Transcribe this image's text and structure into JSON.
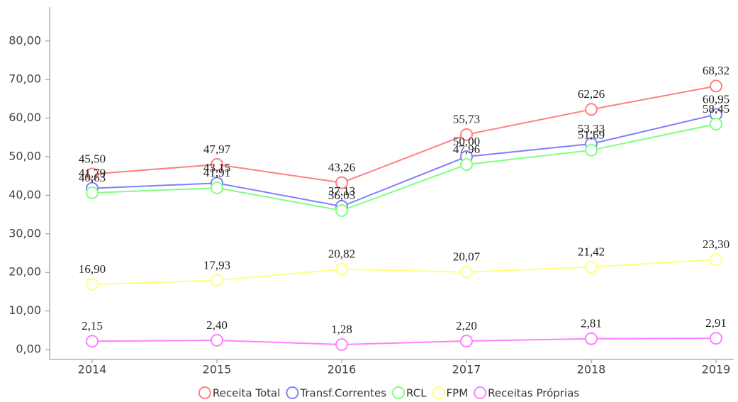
{
  "chart_data": {
    "type": "line",
    "categories": [
      "2014",
      "2015",
      "2016",
      "2017",
      "2018",
      "2019"
    ],
    "ylim": [
      0,
      88
    ],
    "yticks": [
      {
        "value": 0,
        "label": "0,00"
      },
      {
        "value": 10,
        "label": "10,00"
      },
      {
        "value": 20,
        "label": "20,00"
      },
      {
        "value": 30,
        "label": "30,00"
      },
      {
        "value": 40,
        "label": "40,00"
      },
      {
        "value": 50,
        "label": "50,00"
      },
      {
        "value": 60,
        "label": "60,00"
      },
      {
        "value": 70,
        "label": "70,00"
      },
      {
        "value": 80,
        "label": "80,00"
      }
    ],
    "grid": false,
    "legend": "bottom",
    "series": [
      {
        "name": "Receita Total",
        "color": "#ff8080",
        "values": [
          45.5,
          47.97,
          43.26,
          55.73,
          62.26,
          68.32
        ],
        "value_labels": [
          "45,50",
          "47,97",
          "43,26",
          "55,73",
          "62,26",
          "68,32"
        ]
      },
      {
        "name": "Transf.Correntes",
        "color": "#8080ff",
        "values": [
          41.79,
          43.15,
          37.13,
          50.0,
          53.33,
          60.95
        ],
        "value_labels": [
          "41,79",
          "43,15",
          "37,13",
          "50,00",
          "53,33",
          "60,95"
        ]
      },
      {
        "name": "RCL",
        "color": "#80ff80",
        "values": [
          40.63,
          41.91,
          36.03,
          47.96,
          51.69,
          58.45
        ],
        "value_labels": [
          "40,63",
          "41,91",
          "36,03",
          "47,96",
          "51,69",
          "58,45"
        ]
      },
      {
        "name": "FPM",
        "color": "#ffff80",
        "values": [
          16.9,
          17.93,
          20.82,
          20.07,
          21.42,
          23.3
        ],
        "value_labels": [
          "16,90",
          "17,93",
          "20,82",
          "20,07",
          "21,42",
          "23,30"
        ]
      },
      {
        "name": "Receitas Próprias",
        "color": "#ff80ff",
        "values": [
          2.15,
          2.4,
          1.28,
          2.2,
          2.81,
          2.91
        ],
        "value_labels": [
          "2,15",
          "2,40",
          "1,28",
          "2,20",
          "2,81",
          "2,91"
        ]
      }
    ]
  }
}
